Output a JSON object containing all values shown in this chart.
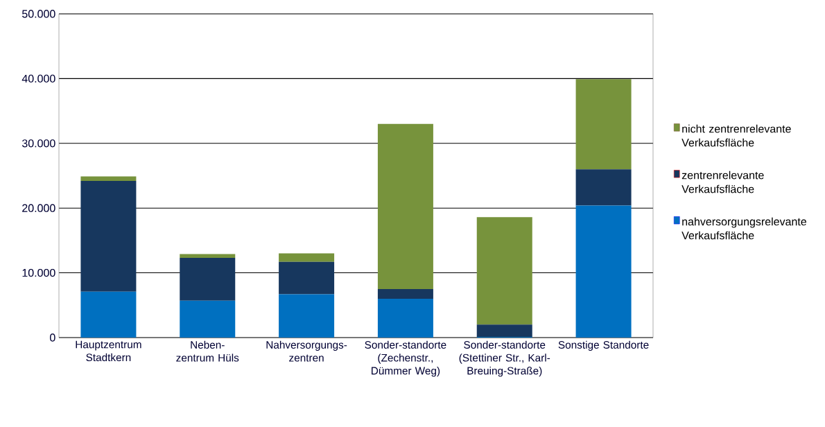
{
  "chart_data": {
    "type": "bar",
    "stacked": true,
    "categories": [
      "Hauptzentrum Stadtkern",
      "Neben-zentrum Hüls",
      "Nahversorgungs-zentren",
      "Sonder-standorte (Zechenstr., Dümmer Weg)",
      "Sonder-standorte (Stettiner Str., Karl-Breuing-Straße)",
      "Sonstige Standorte"
    ],
    "series": [
      {
        "name": "nahversorgungsrelevante Verkaufsfläche",
        "color": "#0070c0",
        "values": [
          7100,
          5700,
          6700,
          6000,
          100,
          20400
        ]
      },
      {
        "name": "zentrenrelevante Verkaufsfläche",
        "color": "#17375e",
        "values": [
          17100,
          6600,
          5000,
          1500,
          1900,
          5600
        ]
      },
      {
        "name": "nicht zentrenrelevante Verkaufsfläche",
        "color": "#77933c",
        "values": [
          700,
          600,
          1300,
          25500,
          16600,
          13900
        ]
      }
    ],
    "ylim": [
      0,
      50000
    ],
    "yticks": [
      {
        "value": 0,
        "label": "0"
      },
      {
        "value": 10000,
        "label": "10.000"
      },
      {
        "value": 20000,
        "label": "20.000"
      },
      {
        "value": 30000,
        "label": "30.000"
      },
      {
        "value": 40000,
        "label": "40.000"
      },
      {
        "value": 50000,
        "label": "50.000"
      }
    ],
    "grid": "y",
    "legend": "right"
  }
}
